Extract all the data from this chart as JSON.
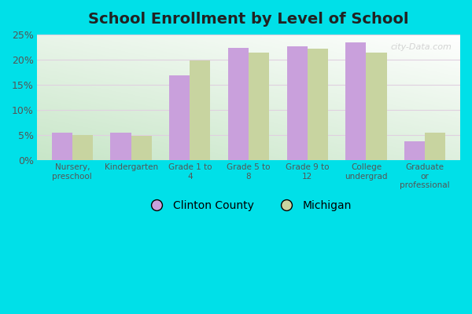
{
  "title": "School Enrollment by Level of School",
  "categories": [
    "Nursery,\npreschool",
    "Kindergarten",
    "Grade 1 to\n4",
    "Grade 5 to\n8",
    "Grade 9 to\n12",
    "College\nundergrad",
    "Graduate\nor\nprofessional"
  ],
  "clinton_county": [
    5.5,
    5.4,
    16.8,
    22.3,
    22.7,
    23.5,
    3.8
  ],
  "michigan": [
    5.0,
    4.9,
    19.9,
    21.4,
    22.1,
    21.4,
    5.4
  ],
  "clinton_color": "#c9a0dc",
  "michigan_color": "#c8d4a0",
  "legend_clinton": "Clinton County",
  "legend_michigan": "Michigan",
  "ylim": [
    0,
    25
  ],
  "yticks": [
    0,
    5,
    10,
    15,
    20,
    25
  ],
  "ytick_labels": [
    "0%",
    "5%",
    "10%",
    "15%",
    "20%",
    "25%"
  ],
  "bg_outer": "#00e0e8",
  "title_fontsize": 14,
  "bar_width": 0.35,
  "watermark": "city-Data.com"
}
